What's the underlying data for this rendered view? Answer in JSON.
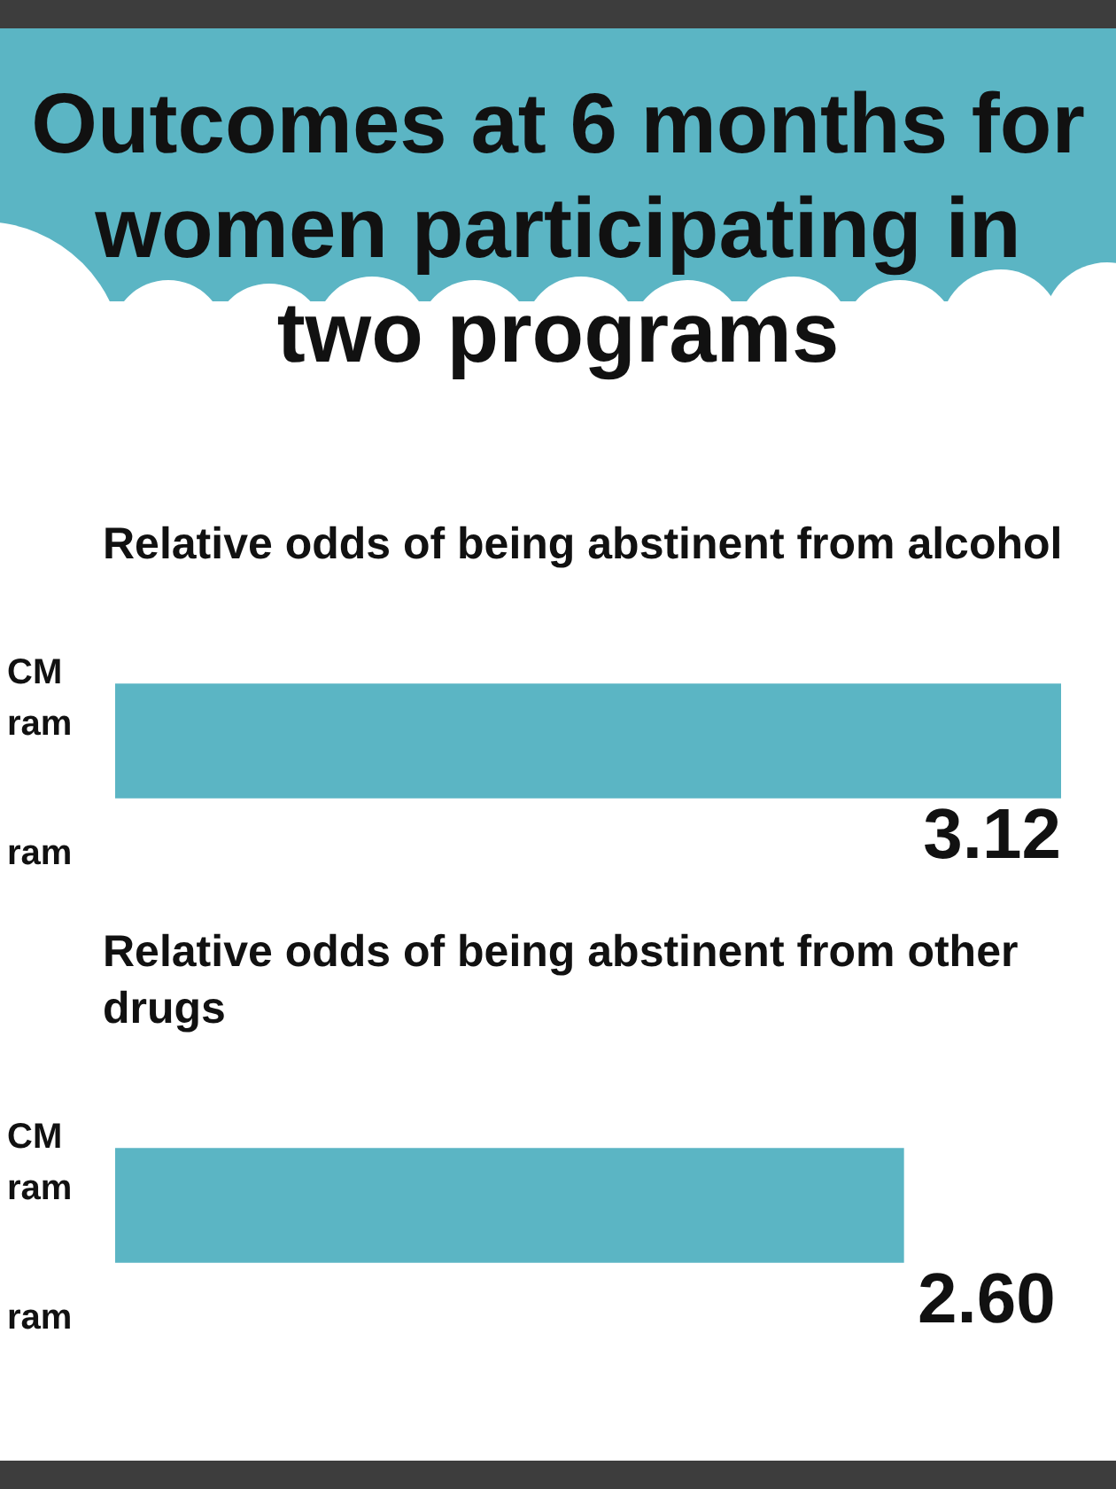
{
  "chart_data": {
    "type": "bar",
    "title": "Outcomes at 6 months for women participating in two programs",
    "orientation": "horizontal",
    "categories": [
      "Relative odds of being abstinent from alcohol",
      "Relative odds of being abstinent from other drugs"
    ],
    "values": [
      3.12,
      2.6
    ],
    "value_labels": [
      "3.12",
      "2.60"
    ],
    "color": "#5bb5c4",
    "annotations": [
      "CM\nram",
      "ram",
      "CM\nram",
      "ram"
    ],
    "tick_labels": "y"
  }
}
